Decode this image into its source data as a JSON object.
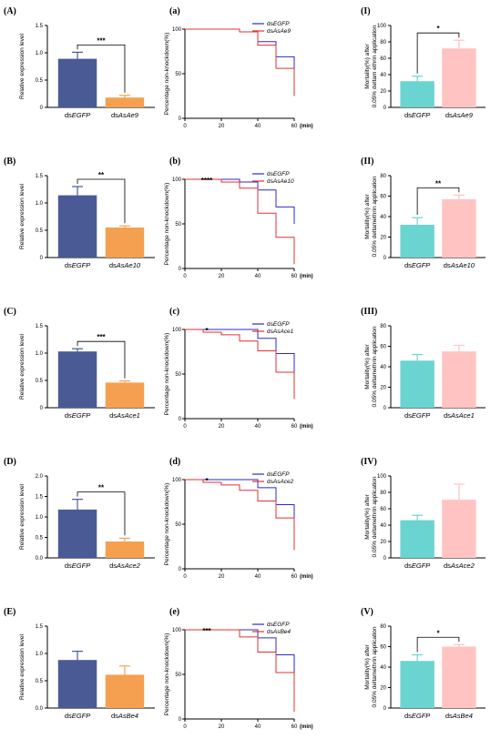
{
  "chart_data": [
    {
      "panel": "(A)",
      "type": "bar",
      "ylabel": "Relative expression level",
      "ylim": [
        0,
        1.5
      ],
      "yticks": [
        "0",
        "0.5",
        "1.0",
        "1.5"
      ],
      "categories": [
        {
          "prefix": "ds",
          "name": "EGFP"
        },
        {
          "prefix": "ds",
          "name": "AsAe9"
        }
      ],
      "values": [
        0.89,
        0.18
      ],
      "errors": [
        0.12,
        0.04
      ],
      "sig": "***",
      "colors": [
        "#4a5a94",
        "#f5a050"
      ]
    },
    {
      "panel": "(B)",
      "type": "bar",
      "ylabel": "Relative expression level",
      "ylim": [
        0,
        1.5
      ],
      "yticks": [
        "0",
        "0.5",
        "1.0",
        "1.5"
      ],
      "categories": [
        {
          "prefix": "ds",
          "name": "EGFP"
        },
        {
          "prefix": "ds",
          "name": "AsAe10"
        }
      ],
      "values": [
        1.14,
        0.55
      ],
      "errors": [
        0.16,
        0.03
      ],
      "sig": "**",
      "colors": [
        "#4a5a94",
        "#f5a050"
      ]
    },
    {
      "panel": "(C)",
      "type": "bar",
      "ylabel": "Relative expression level",
      "ylim": [
        0,
        1.5
      ],
      "yticks": [
        "0",
        "0.5",
        "1.0",
        "1.5"
      ],
      "categories": [
        {
          "prefix": "ds",
          "name": "EGFP"
        },
        {
          "prefix": "ds",
          "name": "AsAce1"
        }
      ],
      "values": [
        1.03,
        0.46
      ],
      "errors": [
        0.05,
        0.03
      ],
      "sig": "***",
      "colors": [
        "#4a5a94",
        "#f5a050"
      ]
    },
    {
      "panel": "(D)",
      "type": "bar",
      "ylabel": "Relative expression level",
      "ylim": [
        0,
        2.0
      ],
      "yticks": [
        "0.0",
        "0.5",
        "1.0",
        "1.5",
        "2.0"
      ],
      "categories": [
        {
          "prefix": "ds",
          "name": "EGFP"
        },
        {
          "prefix": "ds",
          "name": "AsAce2"
        }
      ],
      "values": [
        1.18,
        0.4
      ],
      "errors": [
        0.25,
        0.08
      ],
      "sig": "**",
      "colors": [
        "#4a5a94",
        "#f5a050"
      ]
    },
    {
      "panel": "(E)",
      "type": "bar",
      "ylabel": "Relative expression level",
      "ylim": [
        0,
        1.5
      ],
      "yticks": [
        "0.0",
        "0.5",
        "1.0",
        "1.5"
      ],
      "categories": [
        {
          "prefix": "ds",
          "name": "EGFP"
        },
        {
          "prefix": "ds",
          "name": "AsBe4"
        }
      ],
      "values": [
        0.88,
        0.61
      ],
      "errors": [
        0.16,
        0.16
      ],
      "sig": "",
      "colors": [
        "#4a5a94",
        "#f5a050"
      ]
    },
    {
      "panel": "(a)",
      "type": "line",
      "ylabel": "Percentage non-knockdown(%)",
      "xunit": "(min)",
      "xlim": [
        0,
        60
      ],
      "ylim": [
        0,
        100
      ],
      "xticks": [
        "0",
        "20",
        "40",
        "60"
      ],
      "yticks": [
        "0",
        "50",
        "100"
      ],
      "sig": "",
      "sig_x": 12,
      "series": [
        {
          "name": "EGFP",
          "color": "#2a2acc",
          "x": [
            0,
            30,
            40,
            50,
            60,
            60
          ],
          "y": [
            100,
            97,
            86,
            69,
            57,
            48
          ]
        },
        {
          "name": "AsAe9",
          "color": "#e03030",
          "x": [
            0,
            30,
            40,
            50,
            60,
            60
          ],
          "y": [
            100,
            97,
            82,
            56,
            48,
            25
          ]
        }
      ]
    },
    {
      "panel": "(b)",
      "type": "line",
      "ylabel": "Percentage non-knockdown(%)",
      "xunit": "(min)",
      "xlim": [
        0,
        60
      ],
      "ylim": [
        0,
        100
      ],
      "xticks": [
        "0",
        "20",
        "40",
        "60"
      ],
      "yticks": [
        "0",
        "50",
        "100"
      ],
      "sig": "****",
      "sig_x": 12,
      "series": [
        {
          "name": "EGFP",
          "color": "#2a2acc",
          "x": [
            0,
            20,
            30,
            40,
            50,
            60,
            60
          ],
          "y": [
            100,
            100,
            97,
            88,
            69,
            56,
            50
          ]
        },
        {
          "name": "AsAe10",
          "color": "#e03030",
          "x": [
            0,
            20,
            30,
            40,
            50,
            60,
            60
          ],
          "y": [
            100,
            97,
            90,
            62,
            35,
            20,
            5
          ]
        }
      ]
    },
    {
      "panel": "(c)",
      "type": "line",
      "ylabel": "Percentage non-knockdown(%)",
      "xunit": "(min)",
      "xlim": [
        0,
        60
      ],
      "ylim": [
        0,
        100
      ],
      "xticks": [
        "0",
        "20",
        "40",
        "60"
      ],
      "yticks": [
        "0",
        "50",
        "100"
      ],
      "sig": "*",
      "sig_x": 12,
      "series": [
        {
          "name": "EGFP",
          "color": "#2a2acc",
          "x": [
            0,
            10,
            20,
            30,
            40,
            50,
            60,
            60
          ],
          "y": [
            100,
            100,
            100,
            100,
            90,
            73,
            60,
            50
          ]
        },
        {
          "name": "AsAce1",
          "color": "#e03030",
          "x": [
            0,
            10,
            20,
            30,
            40,
            50,
            60,
            60
          ],
          "y": [
            100,
            97,
            94,
            87,
            76,
            52,
            36,
            22
          ]
        }
      ]
    },
    {
      "panel": "(d)",
      "type": "line",
      "ylabel": "Percentage non-knockdown(%)",
      "xunit": "(min)",
      "xlim": [
        0,
        60
      ],
      "ylim": [
        0,
        100
      ],
      "xticks": [
        "0",
        "20",
        "40",
        "60"
      ],
      "yticks": [
        "0",
        "50",
        "100"
      ],
      "sig": "*",
      "sig_x": 12,
      "series": [
        {
          "name": "EGFP",
          "color": "#2a2acc",
          "x": [
            0,
            10,
            20,
            30,
            40,
            50,
            60,
            60
          ],
          "y": [
            100,
            100,
            100,
            100,
            91,
            72,
            60,
            48
          ]
        },
        {
          "name": "AsAce2",
          "color": "#e03030",
          "x": [
            0,
            10,
            20,
            30,
            40,
            50,
            60,
            60
          ],
          "y": [
            100,
            97,
            94,
            88,
            76,
            57,
            40,
            21
          ]
        }
      ]
    },
    {
      "panel": "(e)",
      "type": "line",
      "ylabel": "Percentage non-knockdown(%)",
      "xunit": "(min)",
      "xlim": [
        0,
        60
      ],
      "ylim": [
        0,
        100
      ],
      "xticks": [
        "0",
        "20",
        "40",
        "60"
      ],
      "yticks": [
        "0",
        "50",
        "100"
      ],
      "sig": "***",
      "sig_x": 12,
      "series": [
        {
          "name": "EGFP",
          "color": "#2a2acc",
          "x": [
            0,
            20,
            30,
            40,
            50,
            60,
            60
          ],
          "y": [
            100,
            100,
            100,
            91,
            72,
            60,
            48
          ]
        },
        {
          "name": "AsBe4",
          "color": "#e03030",
          "x": [
            0,
            20,
            30,
            40,
            50,
            60,
            60
          ],
          "y": [
            100,
            100,
            92,
            75,
            52,
            35,
            8
          ]
        }
      ]
    },
    {
      "panel": "(I)",
      "type": "bar",
      "ylabel": [
        "Mortality(%) after",
        "0.05% deltam ethrin application"
      ],
      "ylim": [
        0,
        100
      ],
      "yticks": [
        "0",
        "20",
        "40",
        "60",
        "80",
        "100"
      ],
      "categories": [
        {
          "prefix": "ds",
          "name": "EGFP"
        },
        {
          "prefix": "ds",
          "name": "AsAe9"
        }
      ],
      "values": [
        32,
        72
      ],
      "errors": [
        6,
        10
      ],
      "sig": "*",
      "colors": [
        "#6ad4d0",
        "#ffc4c2"
      ]
    },
    {
      "panel": "(II)",
      "type": "bar",
      "ylabel": [
        "Mortality(%) after",
        "0.05% deltamethrin application"
      ],
      "ylim": [
        0,
        80
      ],
      "yticks": [
        "0",
        "20",
        "40",
        "60",
        "80"
      ],
      "categories": [
        {
          "prefix": "ds",
          "name": "EGFP"
        },
        {
          "prefix": "ds",
          "name": "AsAe10"
        }
      ],
      "values": [
        32,
        57
      ],
      "errors": [
        7,
        4
      ],
      "sig": "**",
      "colors": [
        "#6ad4d0",
        "#ffc4c2"
      ]
    },
    {
      "panel": "(III)",
      "type": "bar",
      "ylabel": [
        "Mortality(%) after",
        "0.05% deltamethrin application"
      ],
      "ylim": [
        0,
        80
      ],
      "yticks": [
        "0",
        "20",
        "40",
        "60",
        "80"
      ],
      "categories": [
        {
          "prefix": "ds",
          "name": "EGFP"
        },
        {
          "prefix": "ds",
          "name": "AsAce1"
        }
      ],
      "values": [
        46,
        55
      ],
      "errors": [
        6,
        6
      ],
      "sig": "",
      "colors": [
        "#6ad4d0",
        "#ffc4c2"
      ]
    },
    {
      "panel": "(IV)",
      "type": "bar",
      "ylabel": [
        "Mortality(%) after",
        "0.05% deltamethrin application"
      ],
      "ylim": [
        0,
        100
      ],
      "yticks": [
        "0",
        "20",
        "40",
        "60",
        "80",
        "100"
      ],
      "categories": [
        {
          "prefix": "ds",
          "name": "EGFP"
        },
        {
          "prefix": "ds",
          "name": "AsAce2"
        }
      ],
      "values": [
        46,
        71
      ],
      "errors": [
        6,
        19
      ],
      "sig": "",
      "colors": [
        "#6ad4d0",
        "#ffc4c2"
      ]
    },
    {
      "panel": "(V)",
      "type": "bar",
      "ylabel": [
        "Mortality(%) after",
        "0.05% deltamethrin application"
      ],
      "ylim": [
        0,
        80
      ],
      "yticks": [
        "0",
        "20",
        "40",
        "60",
        "80"
      ],
      "categories": [
        {
          "prefix": "ds",
          "name": "EGFP"
        },
        {
          "prefix": "ds",
          "name": "AsBe4"
        }
      ],
      "values": [
        46,
        60
      ],
      "errors": [
        6,
        2
      ],
      "sig": "*",
      "colors": [
        "#6ad4d0",
        "#ffc4c2"
      ]
    }
  ]
}
